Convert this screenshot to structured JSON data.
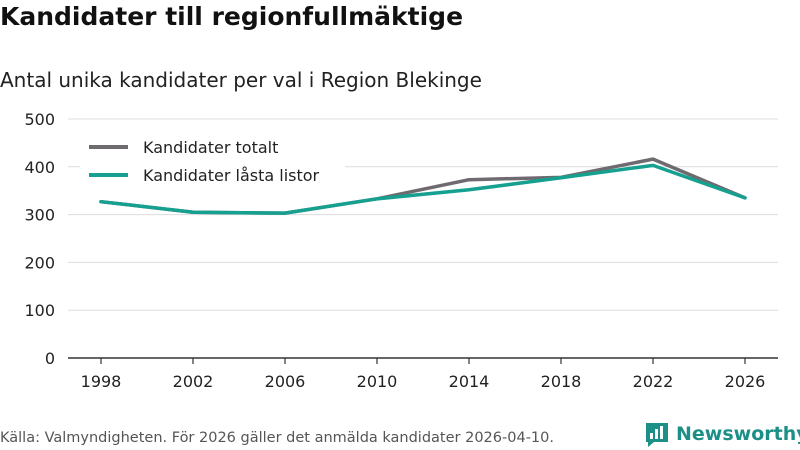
{
  "header": {
    "title": "Kandidater till regionfullmäktige",
    "subtitle": "Antal unika kandidater per val i Region Blekinge"
  },
  "footer": {
    "source": "Källa: Valmyndigheten. För 2026 gäller det anmälda kandidater 2026-04-10."
  },
  "brand": {
    "name": "Newsworthy",
    "icon": "newsworthy-logo-icon",
    "color": "#1c8f86"
  },
  "chart_data": {
    "type": "line",
    "title": "Kandidater till regionfullmäktige",
    "subtitle": "Antal unika kandidater per val i Region Blekinge",
    "xlabel": "",
    "ylabel": "",
    "categories": [
      "1998",
      "2002",
      "2006",
      "2010",
      "2014",
      "2018",
      "2022",
      "2026"
    ],
    "y_ticks": [
      "0",
      "100",
      "200",
      "300",
      "400",
      "500"
    ],
    "ylim": [
      0,
      500
    ],
    "grid": true,
    "legend_position": "top-left",
    "series": [
      {
        "name": "Kandidater totalt",
        "color": "#6e6a70",
        "values": [
          327,
          305,
          303,
          333,
          373,
          378,
          416,
          335
        ]
      },
      {
        "name": "Kandidater låsta listor",
        "color": "#16a08f",
        "values": [
          327,
          305,
          303,
          333,
          352,
          377,
          403,
          335
        ]
      }
    ]
  }
}
